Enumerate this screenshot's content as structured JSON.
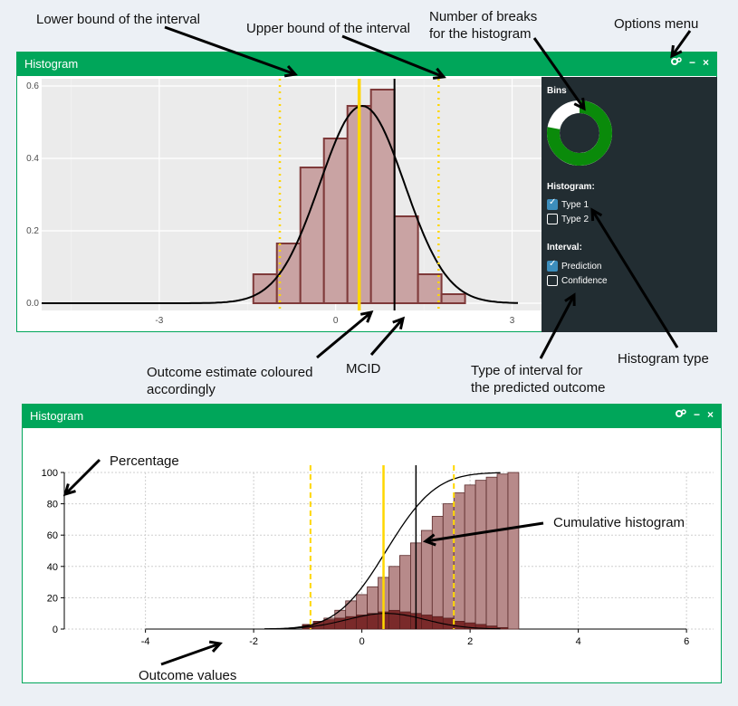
{
  "annotations": {
    "lower_bound": "Lower bound of the interval",
    "upper_bound": "Upper bound of the interval",
    "breaks_line1": "Number of breaks",
    "breaks_line2": "for the histogram",
    "options_menu": "Options menu",
    "outcome_line1": "Outcome estimate coloured",
    "outcome_line2": "accordingly",
    "mcid": "MCID",
    "interval_type_line1": "Type of interval for",
    "interval_type_line2": "the predicted outcome",
    "histogram_type": "Histogram type",
    "percentage": "Percentage",
    "cumulative": "Cumulative histogram",
    "outcome_values": "Outcome values"
  },
  "panel1": {
    "title": "Histogram",
    "tools": {
      "options_icon": "gears-icon",
      "minimize": "−",
      "close": "×"
    },
    "sidebar": {
      "bins_label": "Bins",
      "bins_fraction": 0.78,
      "histogram_label": "Histogram:",
      "type1_label": "Type 1",
      "type1_checked": true,
      "type2_label": "Type 2",
      "type2_checked": false,
      "interval_label": "Interval:",
      "prediction_label": "Prediction",
      "prediction_checked": true,
      "confidence_label": "Confidence",
      "confidence_checked": false
    }
  },
  "panel2": {
    "title": "Histogram",
    "tools": {
      "options_icon": "gears-icon",
      "minimize": "−",
      "close": "×"
    }
  },
  "chart_data": [
    {
      "type": "bar",
      "xlim": [
        -5,
        3.5
      ],
      "ylim": [
        -0.02,
        0.62
      ],
      "x_ticks": [
        -3,
        0,
        3
      ],
      "y_ticks": [
        0.0,
        0.2,
        0.4,
        0.6
      ],
      "y_tick_labels": [
        "0.0",
        "0.2",
        "0.4",
        "0.6"
      ],
      "bins": [
        {
          "x0": -1.4,
          "x1": -1.0,
          "y": 0.08
        },
        {
          "x0": -1.0,
          "x1": -0.6,
          "y": 0.165
        },
        {
          "x0": -0.6,
          "x1": -0.2,
          "y": 0.375
        },
        {
          "x0": -0.2,
          "x1": 0.2,
          "y": 0.455
        },
        {
          "x0": 0.2,
          "x1": 0.6,
          "y": 0.545
        },
        {
          "x0": 0.6,
          "x1": 1.0,
          "y": 0.59
        },
        {
          "x0": 1.0,
          "x1": 1.4,
          "y": 0.24
        },
        {
          "x0": 1.4,
          "x1": 1.8,
          "y": 0.08
        },
        {
          "x0": 1.8,
          "x1": 2.2,
          "y": 0.025
        }
      ],
      "density_mean": 0.45,
      "density_sd": 0.72,
      "density_peak": 0.545,
      "density_range": [
        -5,
        3.1
      ],
      "lower_bound": -0.95,
      "upper_bound": 1.75,
      "estimate": 0.4,
      "mcid": 1.0,
      "grid": true
    },
    {
      "type": "bar",
      "xlim": [
        -5.5,
        6.5
      ],
      "ylim": [
        0,
        100
      ],
      "x_ticks": [
        -4,
        -2,
        0,
        2,
        4,
        6
      ],
      "y_ticks": [
        0,
        20,
        40,
        60,
        80,
        100
      ],
      "bin_width": 0.2,
      "bins_start": -1.1,
      "cumulative_values": [
        2,
        4,
        7,
        12,
        18,
        22,
        27,
        33,
        40,
        47,
        55,
        63,
        72,
        80,
        87,
        92,
        95,
        97,
        99,
        100
      ],
      "density_values": [
        3,
        5,
        6,
        7,
        8,
        9,
        10,
        11,
        12,
        11,
        10,
        9,
        8,
        7,
        5,
        4,
        3,
        2,
        1,
        0
      ],
      "cumulative_curve_range": [
        -1.8,
        2.6
      ],
      "lower_bound": -0.95,
      "upper_bound": 1.7,
      "estimate": 0.4,
      "mcid": 1.0,
      "grid": true
    }
  ]
}
